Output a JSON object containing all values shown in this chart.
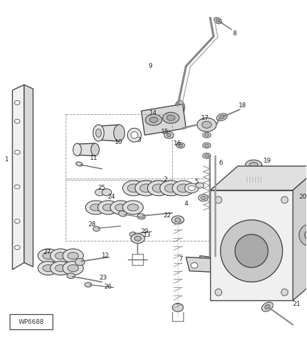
{
  "bg_color": "#ffffff",
  "line_color": "#444444",
  "watermark": "WP6688",
  "gray_light": "#e8e8e8",
  "gray_mid": "#cccccc",
  "gray_dark": "#aaaaaa"
}
